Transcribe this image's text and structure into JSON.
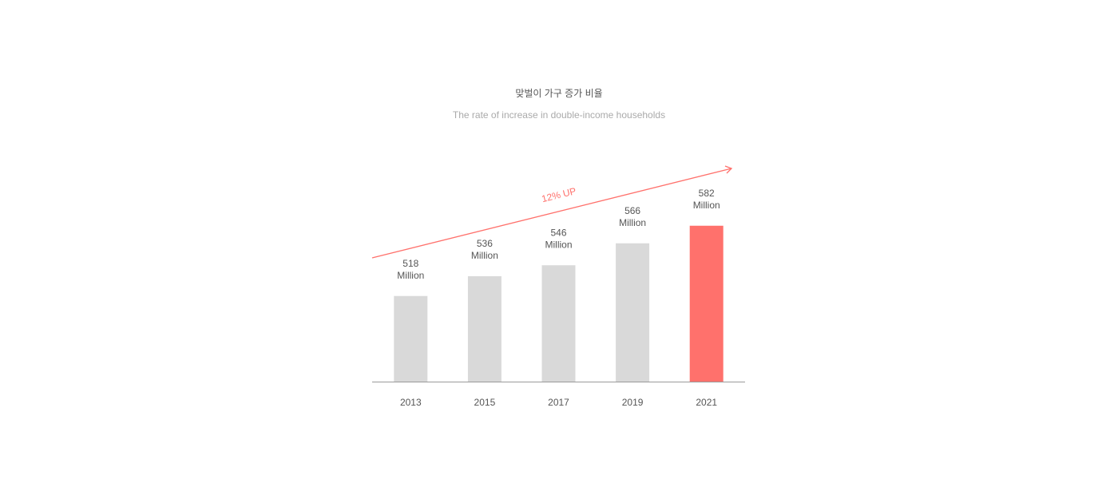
{
  "chart_data": {
    "type": "bar",
    "title": "맞벌이 가구 증가 비율",
    "subtitle": "The rate of increase in double-income households",
    "annotation": "12% UP",
    "categories": [
      "2013",
      "2015",
      "2017",
      "2019",
      "2021"
    ],
    "values": [
      518,
      536,
      546,
      566,
      582
    ],
    "value_labels": [
      "518\nMillion",
      "536\nMillion",
      "546\nMillion",
      "566\nMillion",
      "582\nMillion"
    ],
    "colors": [
      "#d9d9d9",
      "#d9d9d9",
      "#d9d9d9",
      "#d9d9d9",
      "#ff716c"
    ],
    "ylim": [
      440,
      600
    ]
  }
}
